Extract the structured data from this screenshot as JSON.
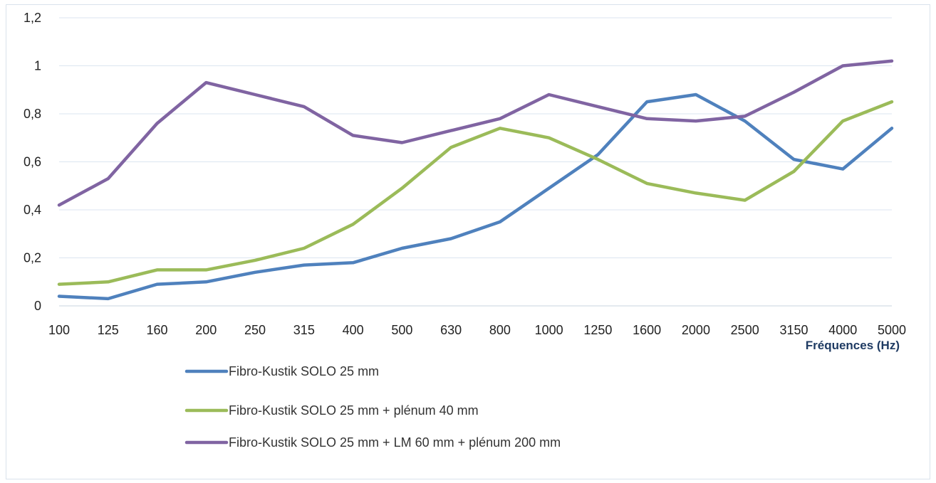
{
  "chart_data": {
    "type": "line",
    "title": "",
    "xlabel": "Fréquences (Hz)",
    "ylabel": "",
    "categories": [
      "100",
      "125",
      "160",
      "200",
      "250",
      "315",
      "400",
      "500",
      "630",
      "800",
      "1000",
      "1250",
      "1600",
      "2000",
      "2500",
      "3150",
      "4000",
      "5000"
    ],
    "ylim": [
      0,
      1.2
    ],
    "yticks": [
      "0",
      "0,2",
      "0,4",
      "0,6",
      "0,8",
      "1",
      "1,2"
    ],
    "ytick_values": [
      0,
      0.2,
      0.4,
      0.6,
      0.8,
      1.0,
      1.2
    ],
    "grid": "horizontal",
    "legend_position": "bottom",
    "series": [
      {
        "name": "Fibro-Kustik SOLO 25 mm",
        "color": "#4f81bd",
        "values": [
          0.04,
          0.03,
          0.09,
          0.1,
          0.14,
          0.17,
          0.18,
          0.24,
          0.28,
          0.35,
          0.49,
          0.63,
          0.85,
          0.88,
          0.77,
          0.61,
          0.57,
          0.74
        ]
      },
      {
        "name": "Fibro-Kustik SOLO 25 mm + plénum 40 mm",
        "color": "#9bbb59",
        "values": [
          0.09,
          0.1,
          0.15,
          0.15,
          0.19,
          0.24,
          0.34,
          0.49,
          0.66,
          0.74,
          0.7,
          0.61,
          0.51,
          0.47,
          0.44,
          0.56,
          0.77,
          0.85
        ]
      },
      {
        "name": "Fibro-Kustik SOLO 25 mm + LM 60 mm + plénum 200 mm",
        "color": "#8064a2",
        "values": [
          0.42,
          0.53,
          0.76,
          0.93,
          0.88,
          0.83,
          0.71,
          0.68,
          0.73,
          0.78,
          0.88,
          0.83,
          0.78,
          0.77,
          0.79,
          0.89,
          1.0,
          1.02
        ]
      }
    ]
  }
}
